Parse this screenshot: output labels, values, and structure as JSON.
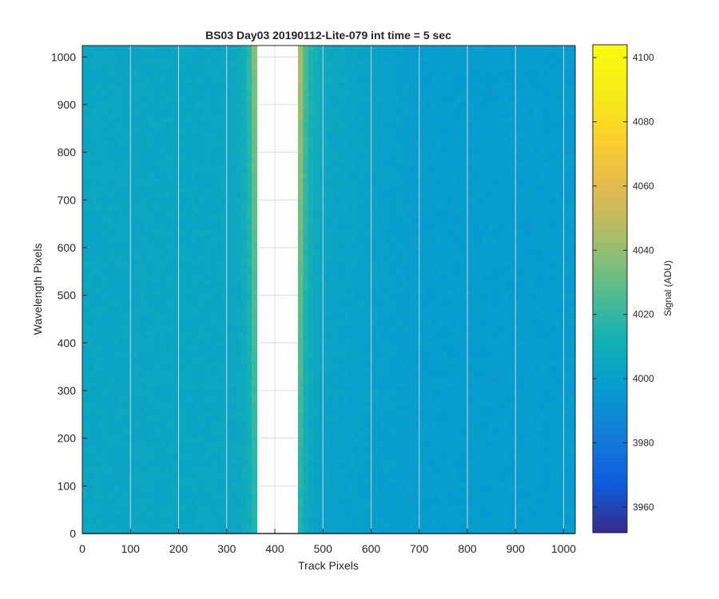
{
  "chart_data": {
    "type": "heatmap",
    "title": "BS03 Day03 20190112-Lite-079 int time = 5 sec",
    "xlabel": "Track Pixels",
    "ylabel": "Wavelength Pixels",
    "xlim": [
      0,
      1024
    ],
    "ylim": [
      0,
      1024
    ],
    "xticks": [
      0,
      100,
      200,
      300,
      400,
      500,
      600,
      700,
      800,
      900,
      1000
    ],
    "yticks": [
      0,
      100,
      200,
      300,
      400,
      500,
      600,
      700,
      800,
      900,
      1000
    ],
    "grid": true,
    "colormap": "parula",
    "colorbar": {
      "label": "Signal (ADU)",
      "clim": [
        3952,
        4104
      ],
      "ticks": [
        3960,
        3980,
        4000,
        4020,
        4040,
        4060,
        4080,
        4100
      ],
      "position": "right"
    },
    "blank_column_range": [
      365,
      447
    ],
    "baseline_signal": 4003,
    "edge_peak_signal_near_gap": 4060,
    "right_region_signal": 3998
  },
  "colors": {
    "axis": "#262626",
    "grid": "#dcdcdc",
    "background": "#ffffff"
  }
}
